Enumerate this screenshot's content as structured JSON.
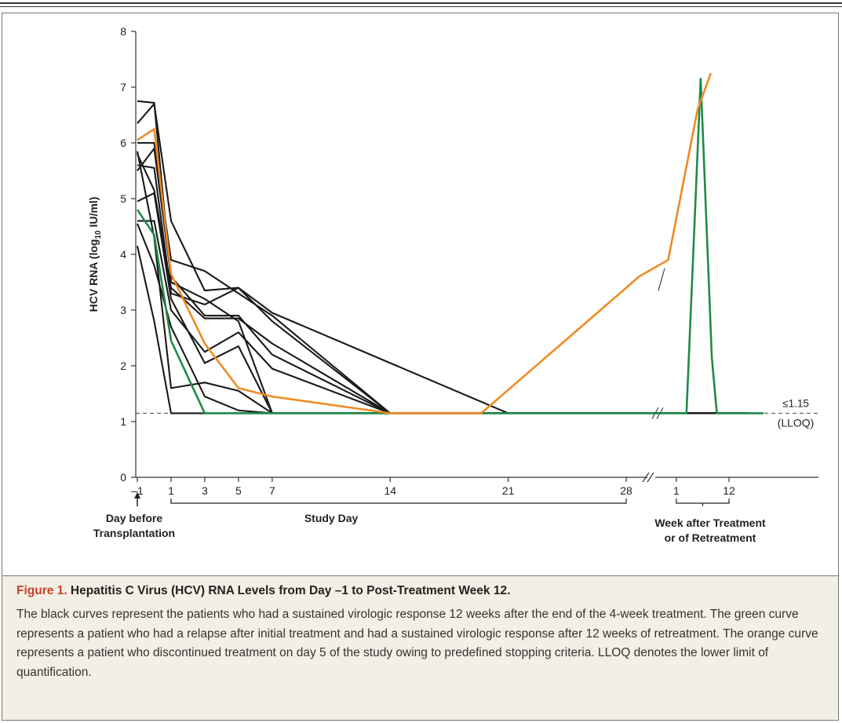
{
  "caption": {
    "label": "Figure 1.",
    "title": "Hepatitis C Virus (HCV) RNA Levels from Day –1 to Post-Treatment Week 12.",
    "body": "The black curves represent the patients who had a sustained virologic response 12 weeks after the end of the 4-week treatment. The green curve represents a patient who had a relapse after initial treatment and had a sustained virologic response after 12 weeks of retreatment. The orange curve represents a patient who discontinued treatment on day 5 of the study owing to predefined stopping criteria. LLOQ denotes the lower limit of quantification."
  },
  "colors": {
    "black": "#1a1a1a",
    "green": "#1f8a4c",
    "orange": "#f08a24",
    "axis": "#333333"
  },
  "chart_data": {
    "type": "line",
    "ylabel": "HCV RNA (log10 IU/ml)",
    "ylim": [
      0,
      8
    ],
    "yticks": [
      "0",
      "1",
      "2",
      "3",
      "4",
      "5",
      "6",
      "7",
      "8"
    ],
    "xticks_study_day": [
      "–1",
      "1",
      "3",
      "5",
      "7",
      "14",
      "21",
      "28"
    ],
    "xticks_week": [
      "1",
      "12"
    ],
    "xgroup_labels": {
      "day_before": "Day before\nTransplantation",
      "study_day": "Study Day",
      "week_after": "Week after Treatment\nor of Retreatment"
    },
    "lloq_label_top": "≤1.15",
    "lloq_label_bottom": "(LLOQ)",
    "lloq": 1.15,
    "series": [
      {
        "color": "black",
        "points": [
          [
            -1,
            6.75
          ],
          [
            0,
            6.72
          ],
          [
            1,
            3.5
          ],
          [
            3,
            3.2
          ],
          [
            5,
            2.8
          ],
          [
            7,
            1.15
          ],
          [
            14,
            1.15
          ],
          [
            21,
            1.15
          ],
          [
            28,
            1.15
          ],
          [
            31,
            1.15
          ],
          [
            34.5,
            1.15
          ]
        ]
      },
      {
        "color": "black",
        "points": [
          [
            -1,
            6.35
          ],
          [
            0,
            6.7
          ],
          [
            1,
            4.6
          ],
          [
            3,
            3.35
          ],
          [
            5,
            3.4
          ],
          [
            7,
            2.8
          ],
          [
            14,
            1.15
          ],
          [
            28,
            1.15
          ],
          [
            34.5,
            1.15
          ]
        ]
      },
      {
        "color": "black",
        "points": [
          [
            -1,
            6.0
          ],
          [
            0,
            6.0
          ],
          [
            1,
            3.9
          ],
          [
            3,
            3.7
          ],
          [
            5,
            3.3
          ],
          [
            7,
            2.9
          ],
          [
            14,
            1.15
          ],
          [
            28,
            1.15
          ],
          [
            34.5,
            1.15
          ]
        ]
      },
      {
        "color": "black",
        "points": [
          [
            -1,
            5.6
          ],
          [
            0,
            5.55
          ],
          [
            1,
            3.3
          ],
          [
            3,
            3.1
          ],
          [
            5,
            3.4
          ],
          [
            7,
            2.95
          ],
          [
            21,
            1.15
          ],
          [
            28,
            1.15
          ],
          [
            34.5,
            1.15
          ]
        ]
      },
      {
        "color": "black",
        "points": [
          [
            -1,
            5.8
          ],
          [
            0,
            5.15
          ],
          [
            1,
            3.4
          ],
          [
            3,
            2.85
          ],
          [
            5,
            2.85
          ],
          [
            7,
            2.4
          ],
          [
            14,
            1.15
          ],
          [
            28,
            1.15
          ],
          [
            34.5,
            1.15
          ]
        ]
      },
      {
        "color": "black",
        "points": [
          [
            -1,
            5.5
          ],
          [
            0,
            5.9
          ],
          [
            1,
            3.6
          ],
          [
            3,
            2.9
          ],
          [
            5,
            2.9
          ],
          [
            7,
            2.2
          ],
          [
            14,
            1.15
          ],
          [
            28,
            1.15
          ],
          [
            34.5,
            1.15
          ]
        ]
      },
      {
        "color": "black",
        "points": [
          [
            -1,
            4.95
          ],
          [
            0,
            5.1
          ],
          [
            1,
            3.2
          ],
          [
            3,
            2.05
          ],
          [
            5,
            2.35
          ],
          [
            7,
            1.15
          ],
          [
            14,
            1.15
          ],
          [
            28,
            1.15
          ],
          [
            34.5,
            1.15
          ]
        ]
      },
      {
        "color": "black",
        "points": [
          [
            -1,
            4.6
          ],
          [
            0,
            4.6
          ],
          [
            1,
            3.0
          ],
          [
            3,
            2.25
          ],
          [
            5,
            2.6
          ],
          [
            7,
            1.95
          ],
          [
            14,
            1.15
          ],
          [
            28,
            1.15
          ],
          [
            34.5,
            1.15
          ]
        ]
      },
      {
        "color": "black",
        "points": [
          [
            -1,
            4.55
          ],
          [
            0,
            3.8
          ],
          [
            1,
            2.7
          ],
          [
            3,
            1.45
          ],
          [
            5,
            1.2
          ],
          [
            7,
            1.15
          ],
          [
            14,
            1.15
          ],
          [
            28,
            1.15
          ],
          [
            34.5,
            1.15
          ]
        ]
      },
      {
        "color": "black",
        "points": [
          [
            -1,
            4.15
          ],
          [
            0,
            2.8
          ],
          [
            1,
            1.15
          ],
          [
            3,
            1.15
          ],
          [
            7,
            1.15
          ],
          [
            14,
            1.15
          ],
          [
            28,
            1.15
          ],
          [
            34.5,
            1.15
          ]
        ]
      },
      {
        "color": "black",
        "points": [
          [
            -1,
            5.85
          ],
          [
            0,
            4.3
          ],
          [
            1,
            1.6
          ],
          [
            3,
            1.7
          ],
          [
            5,
            1.55
          ],
          [
            7,
            1.15
          ],
          [
            14,
            1.15
          ],
          [
            28,
            1.15
          ],
          [
            34.5,
            1.15
          ]
        ]
      },
      {
        "color": "green",
        "points": [
          [
            -1,
            4.8
          ],
          [
            0,
            4.35
          ],
          [
            1,
            2.45
          ],
          [
            3,
            1.15
          ],
          [
            7,
            1.15
          ],
          [
            28,
            1.15
          ],
          [
            31.5,
            1.15
          ],
          [
            32.2,
            7.15
          ],
          [
            32.75,
            2.15
          ],
          [
            33.0,
            1.15
          ],
          [
            34.5,
            1.15
          ],
          [
            35.3,
            1.15
          ]
        ]
      },
      {
        "color": "orange",
        "points": [
          [
            -1,
            6.05
          ],
          [
            0,
            6.25
          ],
          [
            1,
            3.65
          ],
          [
            3,
            2.4
          ],
          [
            5,
            1.6
          ],
          [
            7,
            1.45
          ],
          [
            14,
            1.15
          ],
          [
            19.4,
            1.15
          ],
          [
            28,
            3.4
          ],
          [
            28.9,
            3.6
          ],
          [
            30.6,
            3.9
          ],
          [
            32.05,
            6.6
          ],
          [
            32.7,
            7.25
          ]
        ]
      }
    ]
  }
}
